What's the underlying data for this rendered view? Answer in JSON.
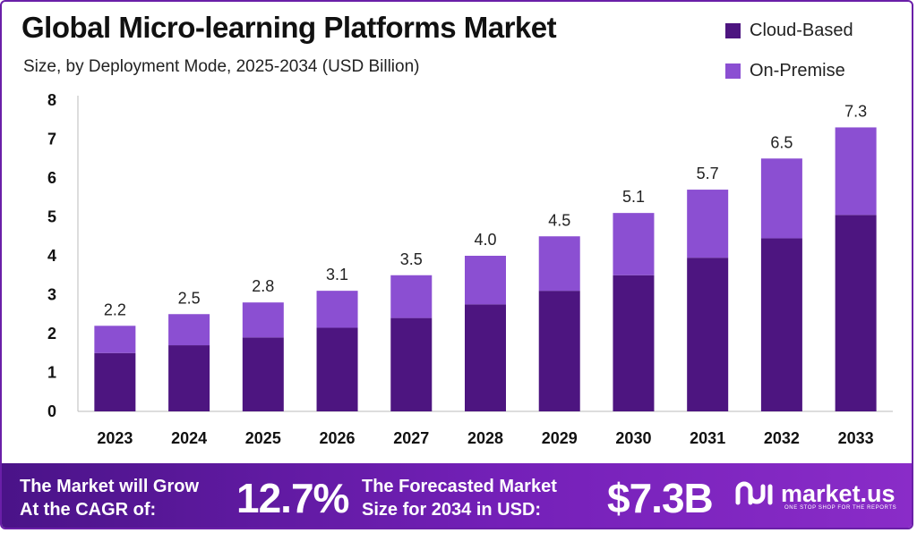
{
  "chart_data": {
    "type": "bar",
    "stacked": true,
    "title": "Global Micro-learning Platforms Market",
    "subtitle": "Size, by Deployment Mode, 2025-2034 (USD Billion)",
    "categories": [
      "2023",
      "2024",
      "2025",
      "2026",
      "2027",
      "2028",
      "2029",
      "2030",
      "2031",
      "2032",
      "2033"
    ],
    "series": [
      {
        "name": "Cloud-Based",
        "color": "#4d1580",
        "values": [
          1.5,
          1.7,
          1.9,
          2.15,
          2.4,
          2.75,
          3.1,
          3.5,
          3.95,
          4.45,
          5.05
        ]
      },
      {
        "name": "On-Premise",
        "color": "#8b4fd2",
        "values": [
          0.7,
          0.8,
          0.9,
          0.95,
          1.1,
          1.25,
          1.4,
          1.6,
          1.75,
          2.05,
          2.25
        ]
      }
    ],
    "totals": [
      "2.2",
      "2.5",
      "2.8",
      "3.1",
      "3.5",
      "4.0",
      "4.5",
      "5.1",
      "5.7",
      "6.5",
      "7.3"
    ],
    "ylim": [
      0,
      8
    ],
    "yticks": [
      "0",
      "1",
      "2",
      "3",
      "4",
      "5",
      "6",
      "7",
      "8"
    ],
    "grid": false,
    "legend_position": "top-right"
  },
  "footer": {
    "cagr_text_line1": "The Market will Grow",
    "cagr_text_line2": "At the CAGR of:",
    "cagr_value": "12.7%",
    "forecast_text_line1": "The Forecasted Market",
    "forecast_text_line2": "Size for 2034 in USD:",
    "forecast_value": "$7.3B",
    "brand_name": "market.us",
    "brand_tagline": "ONE STOP SHOP FOR THE REPORTS"
  }
}
